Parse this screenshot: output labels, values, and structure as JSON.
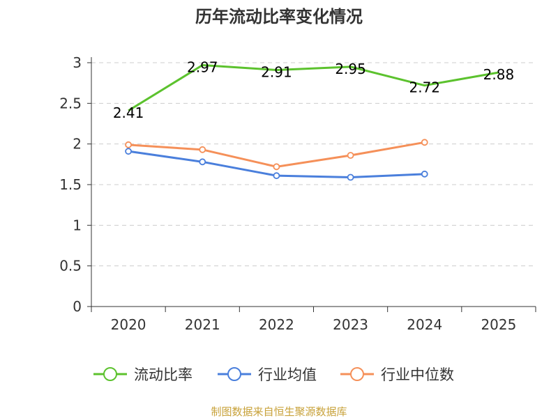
{
  "chart_data": {
    "type": "line",
    "title": "历年流动比率变化情况",
    "categories": [
      "2020",
      "2021",
      "2022",
      "2023",
      "2024",
      "2025"
    ],
    "y_ticks": [
      "0",
      "0.5",
      "1",
      "1.5",
      "2",
      "2.5",
      "3"
    ],
    "ylim": [
      0,
      3
    ],
    "grid": "dashed-horizontal",
    "legend_position": "bottom",
    "series": [
      {
        "name": "流动比率",
        "color": "#5cc22e",
        "values": [
          2.41,
          2.97,
          2.91,
          2.95,
          2.72,
          2.88
        ],
        "labels": [
          "2.41",
          "2.97",
          "2.91",
          "2.95",
          "2.72",
          "2.88"
        ]
      },
      {
        "name": "行业均值",
        "color": "#4a7fdc",
        "values": [
          1.91,
          1.78,
          1.61,
          1.59,
          1.63,
          null
        ]
      },
      {
        "name": "行业中位数",
        "color": "#f59059",
        "values": [
          1.99,
          1.93,
          1.72,
          1.86,
          2.02,
          null
        ]
      }
    ]
  },
  "source_text": "制图数据来自恒生聚源数据库",
  "colors": {
    "axis": "#333333",
    "grid": "#cccccc",
    "source": "#c8a23a"
  }
}
